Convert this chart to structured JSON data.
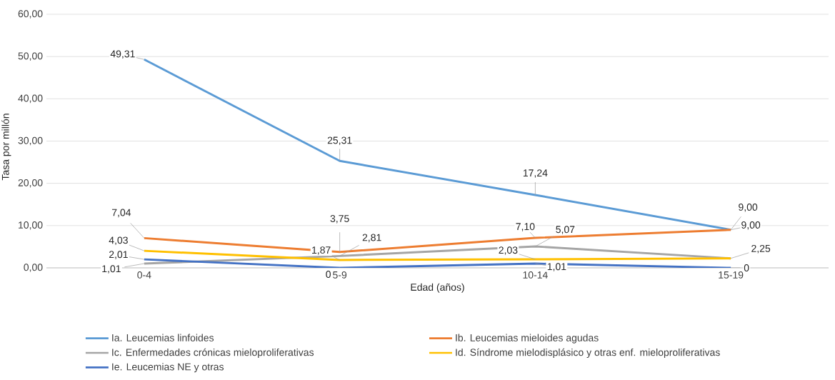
{
  "chart_data": {
    "type": "line",
    "xlabel": "Edad (años)",
    "ylabel": "Tasa por millón",
    "categories": [
      "0-4",
      "5-9",
      "10-14",
      "15-19"
    ],
    "series": [
      {
        "name": "Ia. Leucemias linfoides",
        "color": "#5b9bd5",
        "values": [
          49.31,
          25.31,
          17.24,
          9.0
        ],
        "value_labels": [
          "49,31",
          "25,31",
          "17,24",
          "9,00"
        ]
      },
      {
        "name": "Ib. Leucemias mieloides agudas",
        "color": "#ed7d31",
        "values": [
          7.04,
          3.75,
          7.1,
          9.0
        ],
        "value_labels": [
          "7,04",
          "3,75",
          "7,10",
          "9,00"
        ]
      },
      {
        "name": "Ic. Enfermedades crónicas mieloproliferativas",
        "color": "#a5a5a5",
        "values": [
          1.01,
          2.81,
          5.07,
          2.25
        ],
        "value_labels": [
          "1,01",
          "2,81",
          "5,07",
          null
        ]
      },
      {
        "name": "Id. Síndrome mielodisplásico y otras enf. mieloproliferativas",
        "color": "#ffc000",
        "values": [
          4.03,
          1.87,
          2.03,
          2.25
        ],
        "value_labels": [
          "4,03",
          "1,87",
          "2,03",
          "2,25"
        ]
      },
      {
        "name": "Ie. Leucemias NE y otras",
        "color": "#4472c4",
        "values": [
          2.01,
          0,
          1.01,
          0
        ],
        "value_labels": [
          "2,01",
          "0",
          "1,01",
          "0"
        ]
      }
    ],
    "ylim": [
      0,
      60
    ],
    "yticks": [
      {
        "value": 0,
        "label": "0,00"
      },
      {
        "value": 10,
        "label": "10,00"
      },
      {
        "value": 20,
        "label": "20,00"
      },
      {
        "value": 30,
        "label": "30,00"
      },
      {
        "value": 40,
        "label": "40,00"
      },
      {
        "value": 50,
        "label": "50,00"
      },
      {
        "value": 60,
        "label": "60,00"
      }
    ],
    "grid": "y",
    "legend": "bottom",
    "marker": "none",
    "line_style": "solid"
  }
}
